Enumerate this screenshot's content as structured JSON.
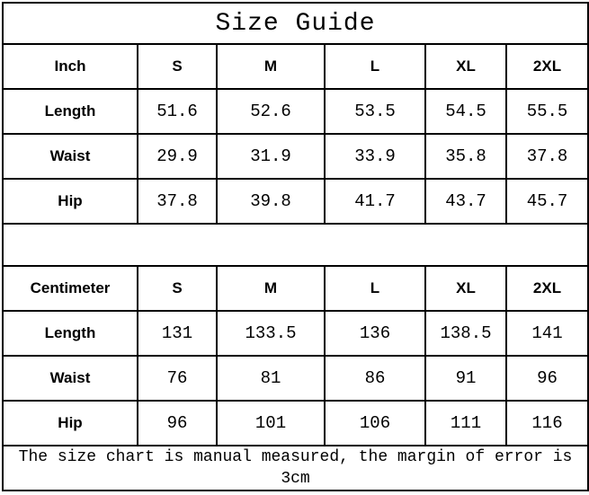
{
  "title": "Size Guide",
  "colors": {
    "border": "#000000",
    "text": "#000000",
    "background": "#ffffff"
  },
  "sections": [
    {
      "unit": "Inch",
      "sizes": [
        "S",
        "M",
        "L",
        "XL",
        "2XL"
      ],
      "rows": [
        {
          "label": "Length",
          "values": [
            "51.6",
            "52.6",
            "53.5",
            "54.5",
            "55.5"
          ]
        },
        {
          "label": "Waist",
          "values": [
            "29.9",
            "31.9",
            "33.9",
            "35.8",
            "37.8"
          ]
        },
        {
          "label": "Hip",
          "values": [
            "37.8",
            "39.8",
            "41.7",
            "43.7",
            "45.7"
          ]
        }
      ]
    },
    {
      "unit": "Centimeter",
      "sizes": [
        "S",
        "M",
        "L",
        "XL",
        "2XL"
      ],
      "rows": [
        {
          "label": "Length",
          "values": [
            "131",
            "133.5",
            "136",
            "138.5",
            "141"
          ]
        },
        {
          "label": "Waist",
          "values": [
            "76",
            "81",
            "86",
            "91",
            "96"
          ]
        },
        {
          "label": "Hip",
          "values": [
            "96",
            "101",
            "106",
            "111",
            "116"
          ]
        }
      ]
    }
  ],
  "footer_note": "The size chart is manual measured, the margin of error is 3cm"
}
